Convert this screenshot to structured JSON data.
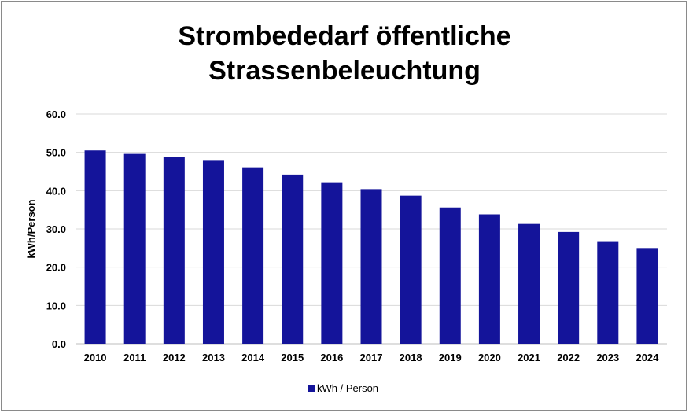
{
  "chart_data": {
    "type": "bar",
    "title_line1": "Strombededarf öffentliche",
    "title_line2": "Strassenbeleuchtung",
    "ylabel": "kWh/Person",
    "xlabel": "",
    "ylim": [
      0,
      60
    ],
    "yticks": [
      "0.0",
      "10.0",
      "20.0",
      "30.0",
      "40.0",
      "50.0",
      "60.0"
    ],
    "grid": true,
    "legend_position": "bottom",
    "categories": [
      "2010",
      "2011",
      "2012",
      "2013",
      "2014",
      "2015",
      "2016",
      "2017",
      "2018",
      "2019",
      "2020",
      "2021",
      "2022",
      "2023",
      "2024"
    ],
    "series": [
      {
        "name": "kWh / Person",
        "color": "#14149a",
        "values": [
          50.5,
          49.6,
          48.7,
          47.8,
          46.1,
          44.2,
          42.2,
          40.4,
          38.7,
          35.6,
          33.8,
          31.3,
          29.2,
          26.8,
          25.0
        ]
      }
    ]
  }
}
